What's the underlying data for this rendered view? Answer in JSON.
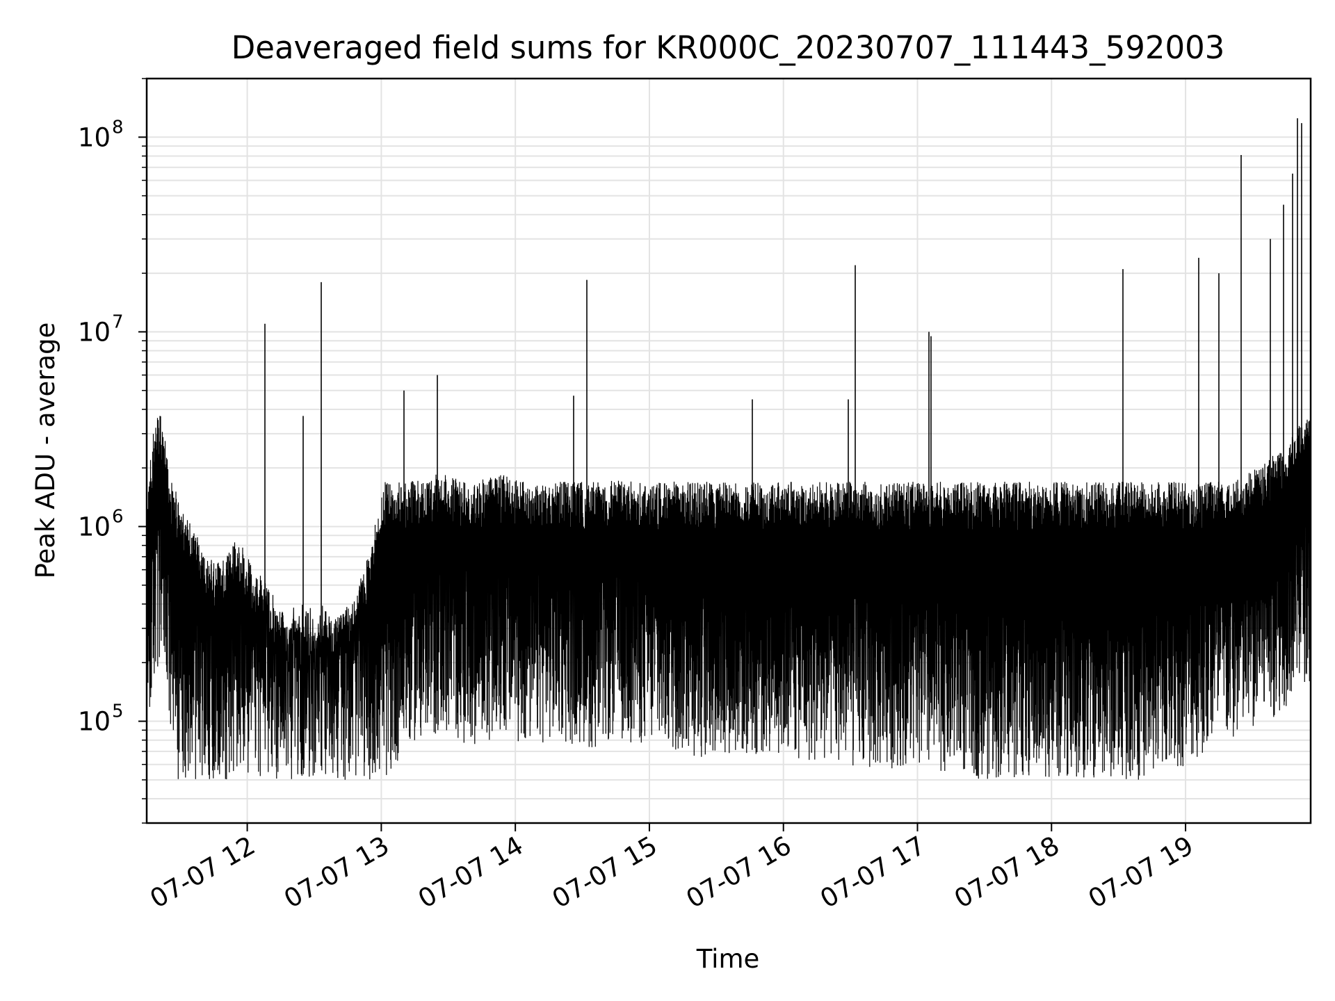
{
  "chart_data": {
    "type": "line",
    "title": "Deaveraged field sums for KR000C_20230707_111443_592003",
    "xlabel": "Time",
    "ylabel": "Peak ADU - average",
    "xscale": "time",
    "yscale": "log",
    "xlim": [
      "2023-07-07 11:15",
      "2023-07-07 19:56"
    ],
    "ylim": [
      30000,
      200000000
    ],
    "grid": true,
    "line_color": "#000000",
    "x_ticks": [
      {
        "value": "2023-07-07 12:00",
        "label": "07-07 12"
      },
      {
        "value": "2023-07-07 13:00",
        "label": "07-07 13"
      },
      {
        "value": "2023-07-07 14:00",
        "label": "07-07 14"
      },
      {
        "value": "2023-07-07 15:00",
        "label": "07-07 15"
      },
      {
        "value": "2023-07-07 16:00",
        "label": "07-07 16"
      },
      {
        "value": "2023-07-07 17:00",
        "label": "07-07 17"
      },
      {
        "value": "2023-07-07 18:00",
        "label": "07-07 18"
      },
      {
        "value": "2023-07-07 19:00",
        "label": "07-07 19"
      }
    ],
    "y_ticks": [
      {
        "value": 100000,
        "base": "10",
        "exp": "5"
      },
      {
        "value": 1000000,
        "base": "10",
        "exp": "6"
      },
      {
        "value": 10000000,
        "base": "10",
        "exp": "7"
      },
      {
        "value": 100000000,
        "base": "10",
        "exp": "8"
      }
    ],
    "series": [
      {
        "x": [
          "2023-07-07 11:15",
          "2023-07-07 11:18",
          "2023-07-07 11:21",
          "2023-07-07 11:24",
          "2023-07-07 11:27",
          "2023-07-07 11:30",
          "2023-07-07 11:34",
          "2023-07-07 11:38",
          "2023-07-07 11:42",
          "2023-07-07 11:46",
          "2023-07-07 11:50",
          "2023-07-07 11:54",
          "2023-07-07 11:58",
          "2023-07-07 12:03",
          "2023-07-07 12:08",
          "2023-07-07 12:13",
          "2023-07-07 12:18",
          "2023-07-07 12:24",
          "2023-07-07 12:30",
          "2023-07-07 12:36",
          "2023-07-07 12:42",
          "2023-07-07 12:48",
          "2023-07-07 12:54",
          "2023-07-07 13:00",
          "2023-07-07 13:05",
          "2023-07-07 13:10",
          "2023-07-07 13:15",
          "2023-07-07 13:20",
          "2023-07-07 13:26",
          "2023-07-07 13:32",
          "2023-07-07 13:40",
          "2023-07-07 13:48",
          "2023-07-07 13:56",
          "2023-07-07 14:05",
          "2023-07-07 14:15",
          "2023-07-07 14:25",
          "2023-07-07 14:35",
          "2023-07-07 14:45",
          "2023-07-07 14:55",
          "2023-07-07 15:05",
          "2023-07-07 15:15",
          "2023-07-07 15:25",
          "2023-07-07 15:35",
          "2023-07-07 15:45",
          "2023-07-07 15:55",
          "2023-07-07 16:05",
          "2023-07-07 16:15",
          "2023-07-07 16:25",
          "2023-07-07 16:35",
          "2023-07-07 16:45",
          "2023-07-07 16:55",
          "2023-07-07 17:05",
          "2023-07-07 17:15",
          "2023-07-07 17:25",
          "2023-07-07 17:35",
          "2023-07-07 17:45",
          "2023-07-07 17:55",
          "2023-07-07 18:05",
          "2023-07-07 18:15",
          "2023-07-07 18:25",
          "2023-07-07 18:35",
          "2023-07-07 18:45",
          "2023-07-07 18:55",
          "2023-07-07 19:05",
          "2023-07-07 19:15",
          "2023-07-07 19:25",
          "2023-07-07 19:35",
          "2023-07-07 19:45",
          "2023-07-07 19:52"
        ],
        "y": [
          800000,
          1800000,
          2200000,
          1500000,
          500000,
          350000,
          300000,
          250000,
          200000,
          180000,
          200000,
          250000,
          220000,
          180000,
          150000,
          120000,
          100000,
          90000,
          80000,
          90000,
          100000,
          120000,
          200000,
          400000,
          700000,
          900000,
          1000000,
          900000,
          1100000,
          1000000,
          950000,
          1000000,
          1050000,
          900000,
          1000000,
          950000,
          900000,
          1000000,
          950000,
          900000,
          850000,
          800000,
          850000,
          800000,
          850000,
          800000,
          750000,
          750000,
          700000,
          700000,
          750000,
          650000,
          700000,
          650000,
          600000,
          600000,
          650000,
          600000,
          600000,
          550000,
          600000,
          650000,
          700000,
          800000,
          900000,
          1000000,
          1200000,
          1500000,
          2000000
        ]
      },
      {
        "type": "spikes",
        "x": [
          "2023-07-07 12:08",
          "2023-07-07 12:33",
          "2023-07-07 12:25",
          "2023-07-07 13:10",
          "2023-07-07 13:25",
          "2023-07-07 14:26",
          "2023-07-07 14:32",
          "2023-07-07 15:46",
          "2023-07-07 16:29",
          "2023-07-07 16:32",
          "2023-07-07 17:05",
          "2023-07-07 17:06",
          "2023-07-07 18:32",
          "2023-07-07 19:06",
          "2023-07-07 19:15",
          "2023-07-07 19:25",
          "2023-07-07 19:38",
          "2023-07-07 19:44",
          "2023-07-07 19:48",
          "2023-07-07 19:50",
          "2023-07-07 19:52"
        ],
        "y": [
          11000000,
          18000000,
          3700000,
          5000000,
          6000000,
          4700000,
          18500000,
          4500000,
          4500000,
          22000000,
          10000000,
          9500000,
          21000000,
          24000000,
          20000000,
          81000000,
          30000000,
          45000000,
          65000000,
          125000000,
          118000000
        ]
      }
    ]
  }
}
